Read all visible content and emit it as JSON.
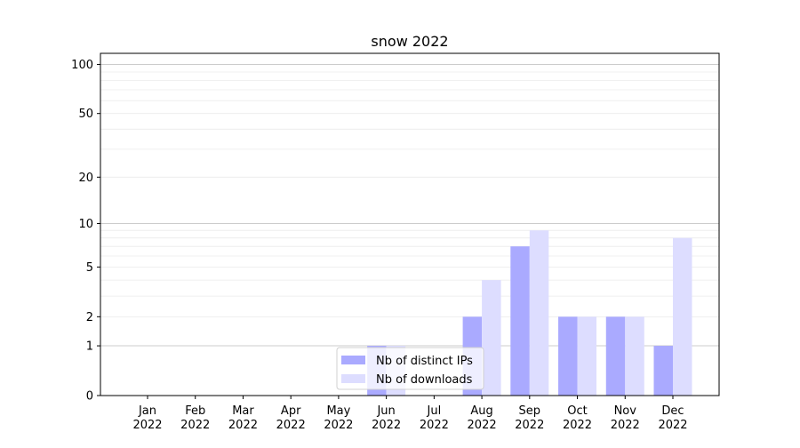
{
  "chart_data": {
    "type": "bar",
    "title": "snow 2022",
    "xlabel": "",
    "ylabel": "",
    "yscale": "symlog",
    "ylim": [
      0,
      117
    ],
    "yticks": [
      0,
      1,
      2,
      5,
      10,
      20,
      50,
      100
    ],
    "grid": true,
    "legend_position": "lower center",
    "categories": [
      "Jan\n2022",
      "Feb\n2022",
      "Mar\n2022",
      "Apr\n2022",
      "May\n2022",
      "Jun\n2022",
      "Jul\n2022",
      "Aug\n2022",
      "Sep\n2022",
      "Oct\n2022",
      "Nov\n2022",
      "Dec\n2022"
    ],
    "series": [
      {
        "name": "Nb of distinct IPs",
        "color": "#aaaaff",
        "values": [
          0,
          0,
          0,
          0,
          0,
          1,
          0,
          2,
          7,
          2,
          2,
          1
        ]
      },
      {
        "name": "Nb of downloads",
        "color": "#ddddff",
        "values": [
          0,
          0,
          0,
          0,
          0,
          1,
          0,
          4,
          9,
          2,
          2,
          8
        ]
      }
    ]
  }
}
